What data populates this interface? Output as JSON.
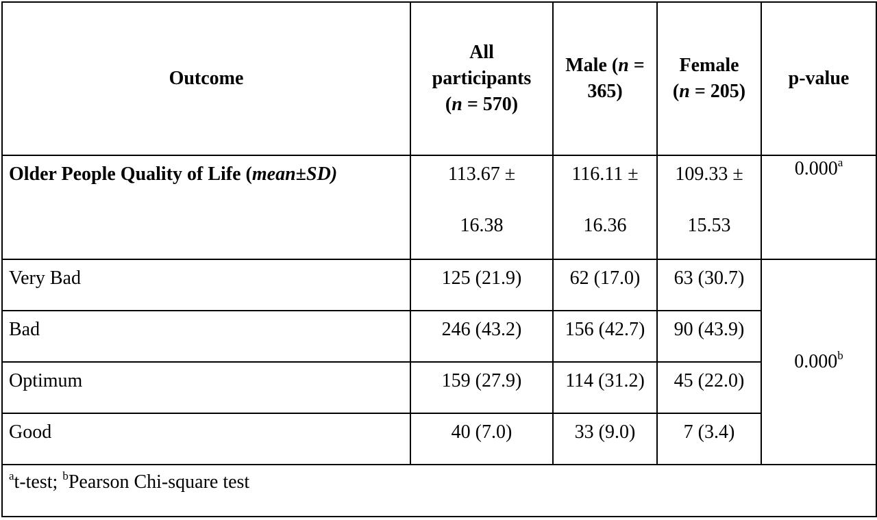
{
  "header": {
    "outcome": "Outcome",
    "all_line1": "All",
    "all_line2": "participants",
    "all_n_open": "(",
    "all_n_var": "n",
    "all_n_rest": " = 570)",
    "male_line1": "Male (",
    "male_n_var": "n",
    "male_line1_rest": " =",
    "male_line2": "365)",
    "female_line1": "Female",
    "female_n_open": "(",
    "female_n_var": "n",
    "female_n_rest": " = 205)",
    "pvalue": "p-value"
  },
  "qol_row": {
    "label_prefix": "Older People Quality of Life (",
    "label_italic": "mean±SD)",
    "all_l1": "113.67 ±",
    "all_l2": "16.38",
    "male_l1": "116.11 ±",
    "male_l2": "16.36",
    "female_l1": "109.33 ±",
    "female_l2": "15.53",
    "pvalue": "0.000",
    "pvalue_sup": "a"
  },
  "categories": [
    {
      "label": "Very Bad",
      "all": "125 (21.9)",
      "male": "62 (17.0)",
      "female": "63 (30.7)"
    },
    {
      "label": "Bad",
      "all": "246 (43.2)",
      "male": "156 (42.7)",
      "female": "90 (43.9)"
    },
    {
      "label": "Optimum",
      "all": "159 (27.9)",
      "male": "114 (31.2)",
      "female": "45 (22.0)"
    },
    {
      "label": "Good",
      "all": "40 (7.0)",
      "male": "33 (9.0)",
      "female": "7 (3.4)"
    }
  ],
  "categories_pvalue": "0.000",
  "categories_pvalue_sup": "b",
  "footnote": {
    "sup_a": "a",
    "text_a": "t-test; ",
    "sup_b": "b",
    "text_b": "Pearson Chi-square test"
  }
}
